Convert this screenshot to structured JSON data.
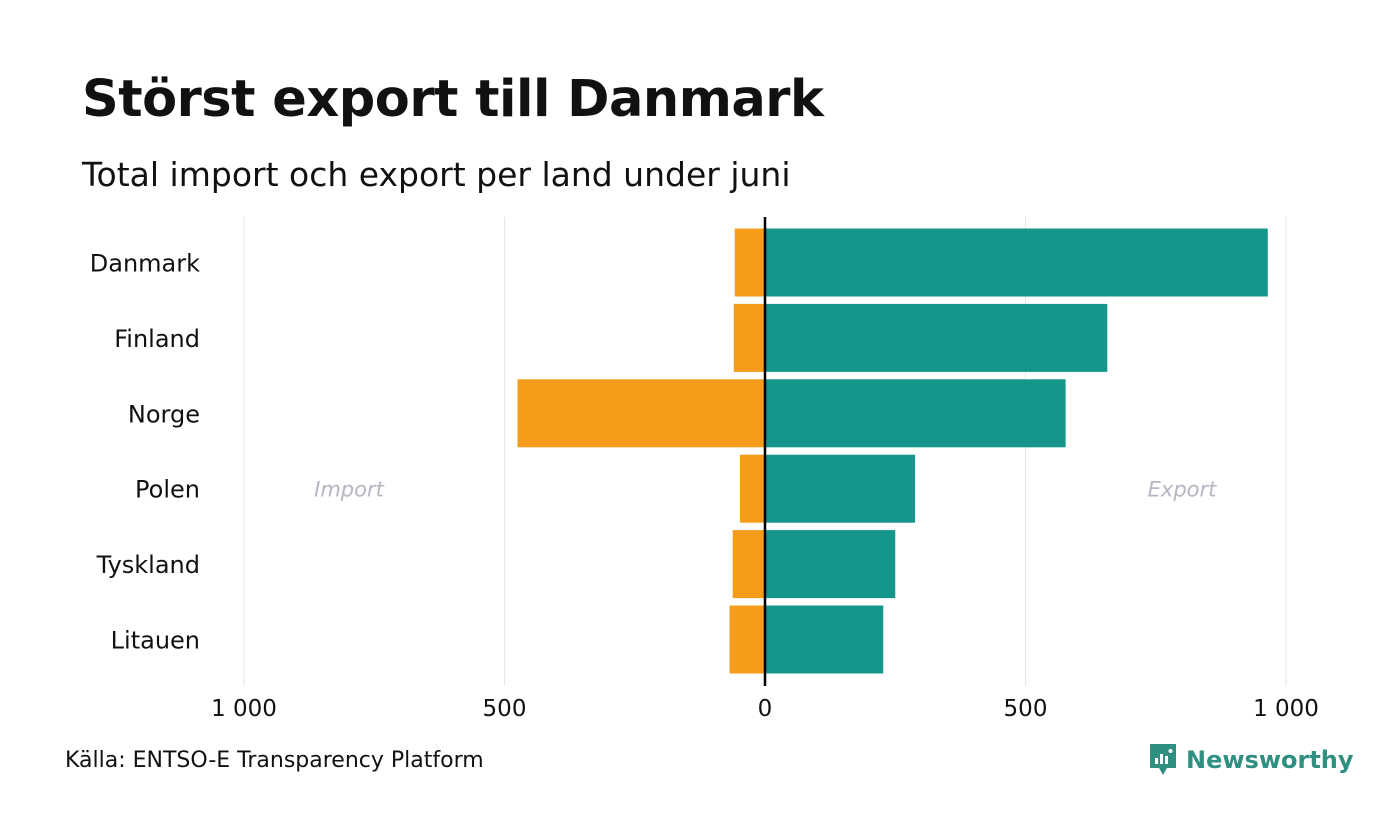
{
  "title": "Störst export till Danmark",
  "subtitle": "Total import och export per land under juni",
  "source": "Källa: ENTSO-E Transparency Platform",
  "brand": {
    "name": "Newsworthy",
    "color": "#2f8f80",
    "icon": "newsworthy-logo-icon"
  },
  "colors": {
    "import": "#f59c1a",
    "export": "#14968a",
    "axis": "#000000",
    "grid": "#e6e6e6"
  },
  "chart_data": {
    "type": "bar",
    "orientation": "horizontal-diverging",
    "categories": [
      "Danmark",
      "Finland",
      "Norge",
      "Polen",
      "Tyskland",
      "Litauen"
    ],
    "series": [
      {
        "name": "Import",
        "values": [
          58,
          60,
          475,
          48,
          62,
          68
        ]
      },
      {
        "name": "Export",
        "values": [
          965,
          657,
          577,
          288,
          250,
          227
        ]
      }
    ],
    "side_labels": {
      "left": "Import",
      "right": "Export"
    },
    "xlim": [
      -1000,
      1000
    ],
    "ticks": [
      {
        "value": -1000,
        "label": "1 000"
      },
      {
        "value": -500,
        "label": "500"
      },
      {
        "value": 0,
        "label": "0"
      },
      {
        "value": 500,
        "label": "500"
      },
      {
        "value": 1000,
        "label": "1 000"
      }
    ],
    "grid": true
  }
}
